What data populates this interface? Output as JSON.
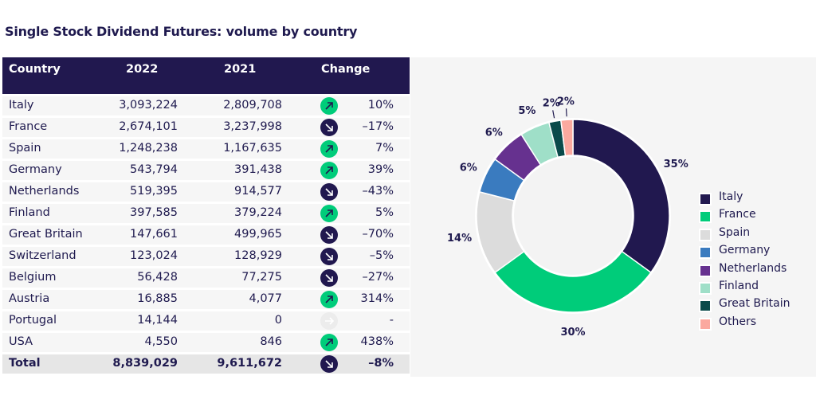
{
  "title": "Single Stock Dividend Futures: volume by country",
  "table": {
    "headers": [
      "Country",
      "2022",
      "2021",
      "Change"
    ],
    "rows": [
      {
        "country": "Italy",
        "y2022": "3,093,224",
        "y2021": "2,809,708",
        "trend": "up",
        "change": "10%"
      },
      {
        "country": "France",
        "y2022": "2,674,101",
        "y2021": "3,237,998",
        "trend": "down",
        "change": "–17%"
      },
      {
        "country": "Spain",
        "y2022": "1,248,238",
        "y2021": "1,167,635",
        "trend": "up",
        "change": "7%"
      },
      {
        "country": "Germany",
        "y2022": "543,794",
        "y2021": "391,438",
        "trend": "up",
        "change": "39%"
      },
      {
        "country": "Netherlands",
        "y2022": "519,395",
        "y2021": "914,577",
        "trend": "down",
        "change": "–43%"
      },
      {
        "country": "Finland",
        "y2022": "397,585",
        "y2021": "379,224",
        "trend": "up",
        "change": "5%"
      },
      {
        "country": "Great Britain",
        "y2022": "147,661",
        "y2021": "499,965",
        "trend": "down",
        "change": "–70%"
      },
      {
        "country": "Switzerland",
        "y2022": "123,024",
        "y2021": "128,929",
        "trend": "down",
        "change": "–5%"
      },
      {
        "country": "Belgium",
        "y2022": "56,428",
        "y2021": "77,275",
        "trend": "down",
        "change": "–27%"
      },
      {
        "country": "Austria",
        "y2022": "16,885",
        "y2021": "4,077",
        "trend": "up",
        "change": "314%"
      },
      {
        "country": "Portugal",
        "y2022": "14,144",
        "y2021": "0",
        "trend": "flat",
        "change": "-"
      },
      {
        "country": "USA",
        "y2022": "4,550",
        "y2021": "846",
        "trend": "up",
        "change": "438%"
      }
    ],
    "total": {
      "country": "Total",
      "y2022": "8,839,029",
      "y2021": "9,611,672",
      "trend": "down",
      "change": "–8%"
    }
  },
  "icons": {
    "up": "arrow-up-right-icon",
    "down": "arrow-down-right-icon",
    "flat": "arrow-right-icon"
  },
  "colors": {
    "navy": "#21184f",
    "green": "#00cc7a",
    "flat": "#ececec"
  },
  "chart_data": {
    "type": "pie",
    "style": "donut",
    "title": "",
    "legend_position": "right",
    "start": "top",
    "direction": "clockwise",
    "slices": [
      {
        "label": "Italy",
        "value": 35,
        "display": "35%",
        "color": "#21184f"
      },
      {
        "label": "France",
        "value": 30,
        "display": "30%",
        "color": "#00cc7a"
      },
      {
        "label": "Spain",
        "value": 14,
        "display": "14%",
        "color": "#dcdcdc"
      },
      {
        "label": "Germany",
        "value": 6,
        "display": "6%",
        "color": "#3a7bbf"
      },
      {
        "label": "Netherlands",
        "value": 6,
        "display": "6%",
        "color": "#66318f"
      },
      {
        "label": "Finland",
        "value": 5,
        "display": "5%",
        "color": "#9fdfc8"
      },
      {
        "label": "Great Britain",
        "value": 2,
        "display": "2%",
        "color": "#0a4a4a"
      },
      {
        "label": "Others",
        "value": 2,
        "display": "2%",
        "color": "#fba99f"
      }
    ]
  }
}
